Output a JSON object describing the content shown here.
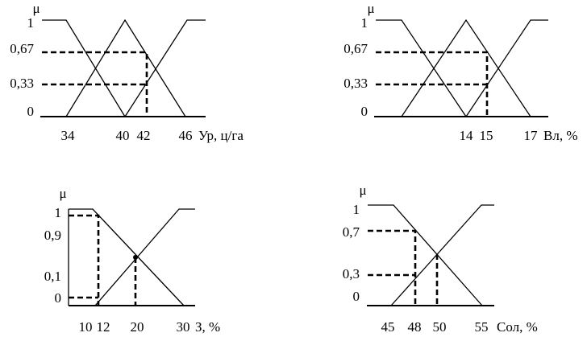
{
  "panels": [
    {
      "y_label": "μ",
      "y_ticks": [
        "1",
        "0,67",
        "0,33",
        "0"
      ],
      "x_ticks": [
        "34",
        "40",
        "42",
        "46"
      ],
      "x_axis_label": "Ур, ц/га"
    },
    {
      "y_label": "μ",
      "y_ticks": [
        "1",
        "0,67",
        "0,33",
        "0"
      ],
      "x_ticks": [
        "14",
        "15",
        "17"
      ],
      "x_axis_label": "Вл, %"
    },
    {
      "y_label": "μ",
      "y_ticks": [
        "1",
        "0,9",
        "0,1",
        "0"
      ],
      "x_ticks": [
        "10",
        "12",
        "20",
        "30"
      ],
      "x_axis_label": "З, %"
    },
    {
      "y_label": "μ",
      "y_ticks": [
        "1",
        "0,7",
        "0,3",
        "0"
      ],
      "x_ticks": [
        "45",
        "48",
        "50",
        "55"
      ],
      "x_axis_label": "Сол, %"
    }
  ]
}
